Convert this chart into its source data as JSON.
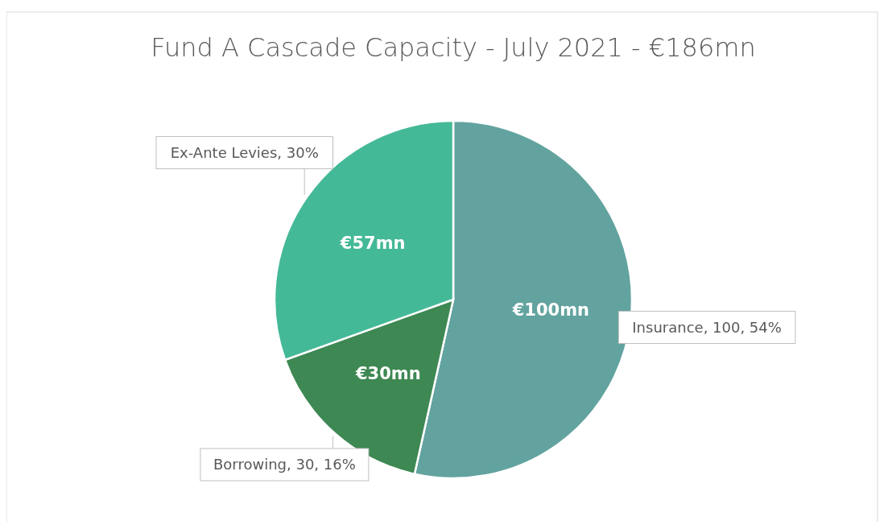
{
  "chart_data": {
    "type": "pie",
    "title": "Fund A Cascade Capacity - July 2021 - €186mn",
    "categories": [
      "Insurance",
      "Borrowing",
      "Ex-Ante Levies"
    ],
    "values": [
      100,
      30,
      57
    ],
    "colors": [
      "#62a39f",
      "#3e8853",
      "#44b997"
    ],
    "value_labels": [
      "€100mn",
      "€30mn",
      "€57mn"
    ],
    "annotations": [
      ", 100, 54%",
      ", 30, 16%",
      ", 30%"
    ]
  }
}
